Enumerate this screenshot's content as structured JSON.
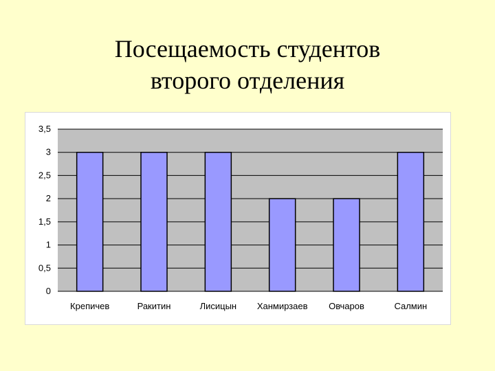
{
  "slide": {
    "title_line1": "Посещаемость студентов",
    "title_line2": "второго отделения"
  },
  "colors": {
    "background": "#FFFFCC",
    "plot_area": "#C0C0C0",
    "bar_fill": "#9999FF",
    "bar_stroke": "#000000",
    "gridline": "#000000"
  },
  "chart_data": {
    "type": "bar",
    "categories": [
      "Крепичев",
      "Ракитин",
      "Лисицын",
      "Ханмирзаев",
      "Овчаров",
      "Салмин"
    ],
    "values": [
      3,
      3,
      3,
      2,
      2,
      3
    ],
    "ylim": [
      0,
      3.5
    ],
    "yticks": [
      0,
      0.5,
      1,
      1.5,
      2,
      2.5,
      3,
      3.5
    ],
    "ytick_labels": [
      "0",
      "0,5",
      "1",
      "1,5",
      "2",
      "2,5",
      "3",
      "3,5"
    ],
    "grid": true,
    "legend": "none"
  }
}
